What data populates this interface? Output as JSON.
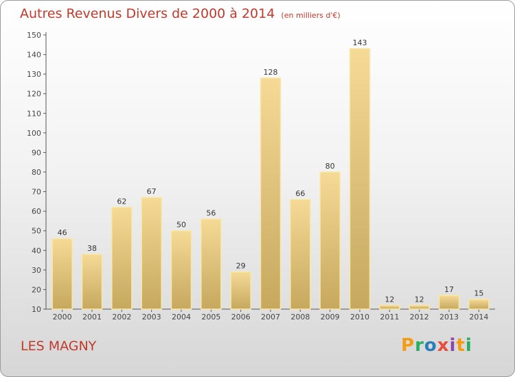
{
  "title": "Autres Revenus Divers de 2000 à 2014",
  "subtitle": "(en milliers d'€)",
  "place": "LES MAGNY",
  "logo": {
    "text": "Proxiti",
    "colors": [
      "#f39c12",
      "#27ae60",
      "#2980b9",
      "#e74c3c",
      "#8e44ad",
      "#f39c12",
      "#27ae60"
    ]
  },
  "chart_data": {
    "type": "bar",
    "title": "Autres Revenus Divers de 2000 à 2014",
    "subtitle": "(en milliers d'€)",
    "categories": [
      "2000",
      "2001",
      "2002",
      "2003",
      "2004",
      "2005",
      "2006",
      "2007",
      "2008",
      "2009",
      "2010",
      "2011",
      "2012",
      "2013",
      "2014"
    ],
    "values": [
      46,
      38,
      62,
      67,
      50,
      56,
      29,
      128,
      66,
      80,
      143,
      12,
      12,
      17,
      15
    ],
    "ylim": [
      10,
      150
    ],
    "yticks": [
      10,
      20,
      30,
      40,
      50,
      60,
      70,
      80,
      90,
      100,
      110,
      120,
      130,
      140,
      150
    ],
    "grid": false,
    "bar_color_top": "#f5da96",
    "bar_color_bottom": "#c6a85e",
    "bar_edge": "#f8e7a8"
  }
}
